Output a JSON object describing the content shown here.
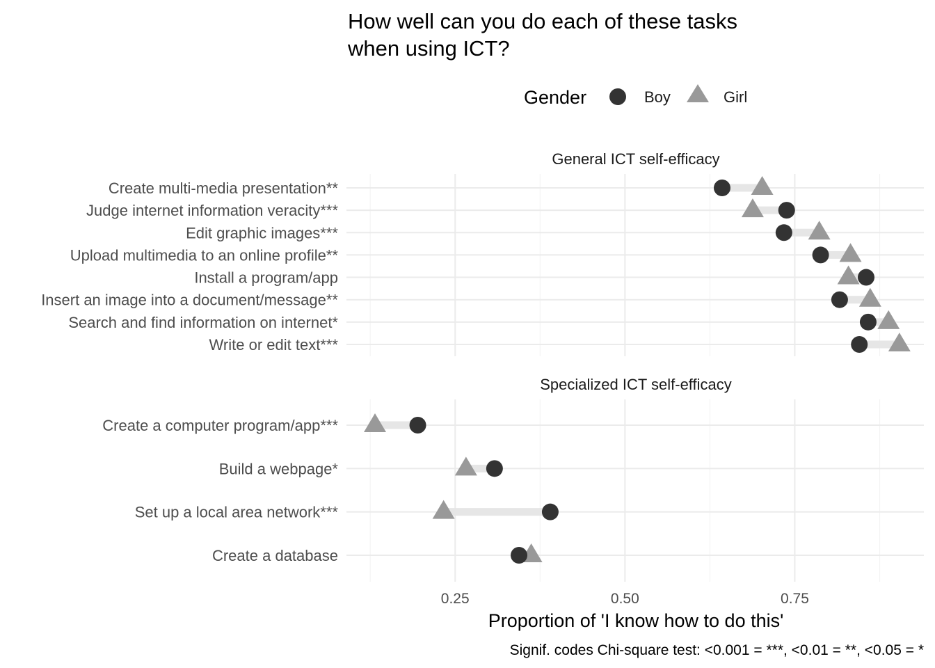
{
  "chart_data": {
    "type": "dumbbell",
    "title": [
      "How well can you do each of these tasks",
      "when using ICT?"
    ],
    "legend": {
      "title": "Gender",
      "placement": "top",
      "entries": [
        {
          "name": "Boy",
          "shape": "circle",
          "color": "#333333"
        },
        {
          "name": "Girl",
          "shape": "triangle",
          "color": "#999999"
        }
      ]
    },
    "xlabel": "Proportion of 'I know how to do this'",
    "caption": "Signif. codes Chi-square test: <0.001 = ***, <0.01 = **, <0.05 = *",
    "xlim": [
      0.09,
      0.94
    ],
    "xticks": [
      0.25,
      0.5,
      0.75
    ],
    "xtick_labels": [
      "0.25",
      "0.50",
      "0.75"
    ],
    "grid": true,
    "connector_color": "#e6e6e6",
    "facets": [
      {
        "label": "General ICT self-efficacy",
        "categories": [
          "Create multi-media presentation**",
          "Judge internet information veracity***",
          "Edit graphic images***",
          "Upload multimedia to an online profile**",
          "Install a program/app",
          "Insert an image into a document/message**",
          "Search and find information on internet*",
          "Write or edit text***"
        ],
        "series": [
          {
            "name": "Boy",
            "values": [
              0.643,
              0.738,
              0.734,
              0.788,
              0.855,
              0.816,
              0.858,
              0.845
            ]
          },
          {
            "name": "Girl",
            "values": [
              0.702,
              0.688,
              0.786,
              0.832,
              0.829,
              0.861,
              0.888,
              0.904
            ]
          }
        ]
      },
      {
        "label": "Specialized ICT self-efficacy",
        "categories": [
          "Create a computer program/app***",
          "Build a webpage*",
          "Set up a local area network***",
          "Create a database"
        ],
        "series": [
          {
            "name": "Boy",
            "values": [
              0.195,
              0.308,
              0.39,
              0.344
            ]
          },
          {
            "name": "Girl",
            "values": [
              0.132,
              0.266,
              0.233,
              0.362
            ]
          }
        ]
      }
    ]
  }
}
